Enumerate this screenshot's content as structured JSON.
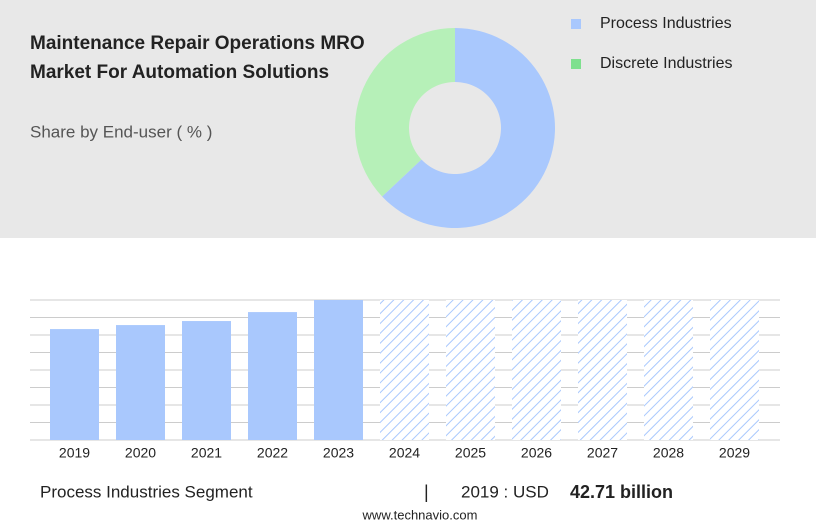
{
  "chart_data": [
    {
      "type": "pie",
      "title": "Maintenance Repair Operations MRO Market For Automation Solutions",
      "subtitle": "Share by End-user ( % )",
      "categories": [
        "Process Industries",
        "Discrete Industries"
      ],
      "values": [
        63,
        37
      ],
      "colors": [
        "#a9c8fd",
        "#b6f0b8"
      ],
      "legend_colors": [
        "#a9c8fd",
        "#7ee08e"
      ]
    },
    {
      "type": "bar",
      "categories": [
        "2019",
        "2020",
        "2021",
        "2022",
        "2023",
        "2024",
        "2025",
        "2026",
        "2027",
        "2028",
        "2029"
      ],
      "values": [
        42.71,
        44.25,
        45.8,
        49.25,
        53.9,
        null,
        null,
        null,
        null,
        null,
        null
      ],
      "color": "#a9c8fd",
      "ylim": [
        0,
        53.9
      ]
    }
  ],
  "footer": {
    "segment": "Process Industries Segment",
    "separator": "|",
    "year_label": "2019 : USD",
    "value": "42.71 billion",
    "source": "www.technavio.com"
  }
}
